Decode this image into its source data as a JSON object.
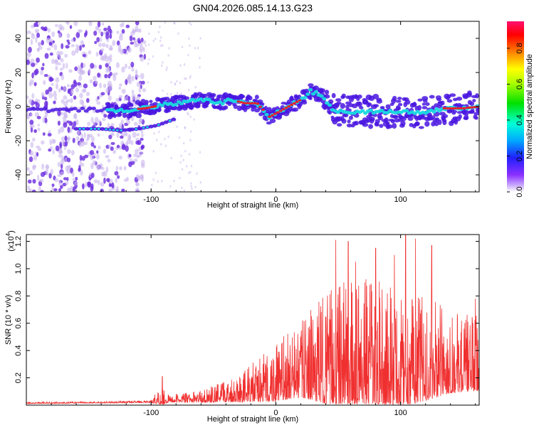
{
  "title": "GN04.2026.085.14.13.G23",
  "colors": {
    "line": "#f03030",
    "ridge_core": "#e8202a",
    "ridge_mid": "#19d8e0",
    "ridge_edge": "#4a16e0",
    "noise": "#6a2ae0",
    "noise_faint": "#c9b5ee"
  },
  "chart_data": [
    {
      "type": "heatmap",
      "xlabel": "Height of straight line (km)",
      "ylabel": "Frequency (Hz)",
      "xlim": [
        -200,
        163
      ],
      "ylim": [
        -50,
        50
      ],
      "x_ticks": [
        -100,
        0,
        100
      ],
      "x_tick_labels": [
        "-100",
        "0",
        "100"
      ],
      "y_ticks": [
        -40,
        -20,
        0,
        20,
        40
      ],
      "y_tick_labels": [
        "-40",
        "-20",
        "0",
        "20",
        "40"
      ],
      "ridge_track": [
        {
          "x": -135,
          "y": -2
        },
        {
          "x": -120,
          "y": -2
        },
        {
          "x": -105,
          "y": -1
        },
        {
          "x": -90,
          "y": 1
        },
        {
          "x": -70,
          "y": 3
        },
        {
          "x": -55,
          "y": 4
        },
        {
          "x": -45,
          "y": 2
        },
        {
          "x": -35,
          "y": 4
        },
        {
          "x": -25,
          "y": 2
        },
        {
          "x": -15,
          "y": 2
        },
        {
          "x": -5,
          "y": -6
        },
        {
          "x": 0,
          "y": -4
        },
        {
          "x": 10,
          "y": 0
        },
        {
          "x": 20,
          "y": 4
        },
        {
          "x": 28,
          "y": 9
        },
        {
          "x": 38,
          "y": 6
        },
        {
          "x": 45,
          "y": -2
        },
        {
          "x": 60,
          "y": -3
        },
        {
          "x": 80,
          "y": -3
        },
        {
          "x": 100,
          "y": -3
        },
        {
          "x": 120,
          "y": -4
        },
        {
          "x": 135,
          "y": -1
        },
        {
          "x": 150,
          "y": -1
        },
        {
          "x": 163,
          "y": 0
        }
      ],
      "secondary_track": [
        {
          "x": -160,
          "y": -13
        },
        {
          "x": -140,
          "y": -13
        },
        {
          "x": -125,
          "y": -14
        },
        {
          "x": -110,
          "y": -13
        },
        {
          "x": -95,
          "y": -11
        },
        {
          "x": -80,
          "y": -7
        }
      ],
      "colorbar": {
        "label": "Normalized spectral amplitude",
        "range": [
          0,
          0.95
        ],
        "ticks": [
          0.0,
          0.2,
          0.4,
          0.6,
          0.8
        ],
        "tick_labels": [
          "0.0",
          "0.2",
          "0.4",
          "0.6",
          "0.8"
        ]
      }
    },
    {
      "type": "line",
      "xlabel": "Height of straight line (km)",
      "ylabel": "SNR (10 * v/v)",
      "scale_label": "(x10",
      "scale_exponent": "4",
      "scale_close": ")",
      "xlim": [
        -200,
        163
      ],
      "ylim": [
        0,
        1.25
      ],
      "x_ticks": [
        -100,
        0,
        100
      ],
      "x_tick_labels": [
        "-100",
        "0",
        "100"
      ],
      "y_ticks": [
        0.2,
        0.4,
        0.6,
        0.8,
        1.0,
        1.2
      ],
      "y_tick_labels": [
        "0.2",
        "0.4",
        "0.6",
        "0.8",
        "1.0",
        "1.2"
      ],
      "envelope": [
        {
          "x": -200,
          "base": 0.015,
          "amp": 0.01
        },
        {
          "x": -130,
          "base": 0.02,
          "amp": 0.012
        },
        {
          "x": -100,
          "base": 0.025,
          "amp": 0.015
        },
        {
          "x": -92,
          "base": 0.06,
          "amp": 0.16
        },
        {
          "x": -86,
          "base": 0.04,
          "amp": 0.05
        },
        {
          "x": -60,
          "base": 0.05,
          "amp": 0.08
        },
        {
          "x": -40,
          "base": 0.08,
          "amp": 0.15
        },
        {
          "x": -20,
          "base": 0.12,
          "amp": 0.25
        },
        {
          "x": 0,
          "base": 0.18,
          "amp": 0.4
        },
        {
          "x": 20,
          "base": 0.25,
          "amp": 0.5
        },
        {
          "x": 40,
          "base": 0.3,
          "amp": 0.75
        },
        {
          "x": 60,
          "base": 0.32,
          "amp": 0.85
        },
        {
          "x": 80,
          "base": 0.32,
          "amp": 0.85
        },
        {
          "x": 100,
          "base": 0.3,
          "amp": 0.8
        },
        {
          "x": 120,
          "base": 0.3,
          "amp": 0.7
        },
        {
          "x": 140,
          "base": 0.3,
          "amp": 0.55
        },
        {
          "x": 163,
          "base": 0.3,
          "amp": 0.5
        }
      ],
      "peaks": [
        {
          "x": -91,
          "y": 0.21
        },
        {
          "x": 48,
          "y": 1.21
        },
        {
          "x": 58,
          "y": 1.2
        },
        {
          "x": 64,
          "y": 1.05
        },
        {
          "x": 80,
          "y": 1.15
        },
        {
          "x": 95,
          "y": 1.1
        },
        {
          "x": 104,
          "y": 1.27
        },
        {
          "x": 112,
          "y": 1.22
        },
        {
          "x": 125,
          "y": 1.17
        },
        {
          "x": 160,
          "y": 0.78
        }
      ]
    }
  ]
}
